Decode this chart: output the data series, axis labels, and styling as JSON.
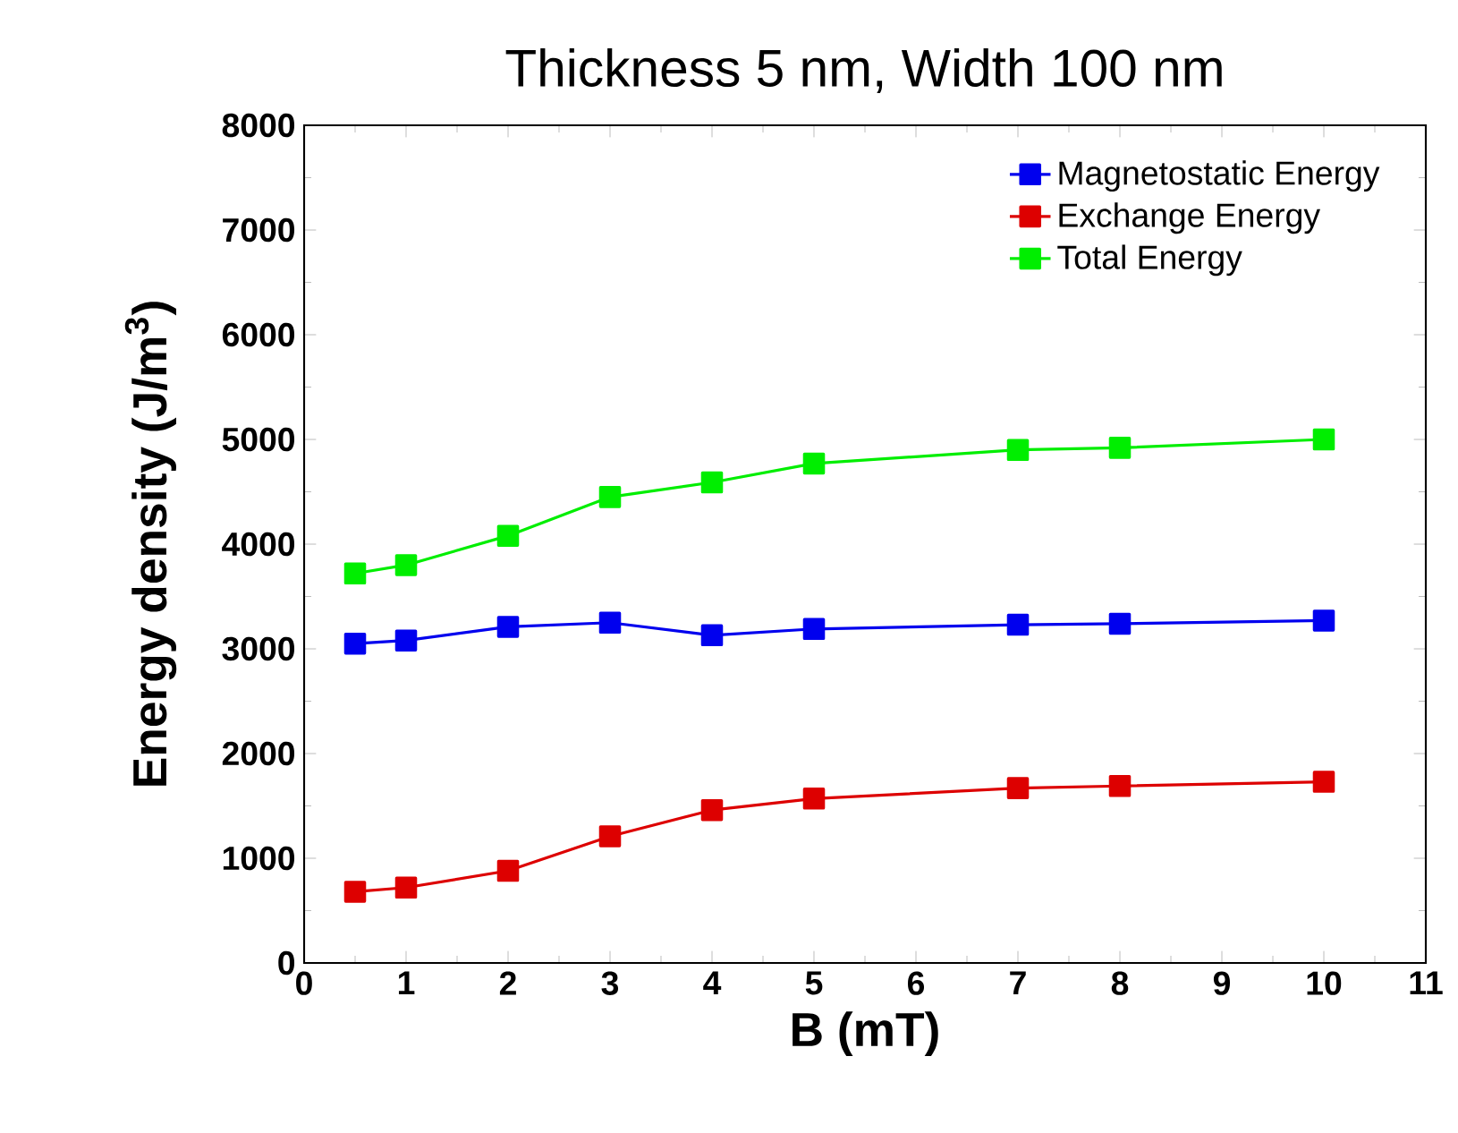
{
  "chart_data": {
    "type": "line",
    "title": "Thickness 5 nm, Width 100 nm",
    "xlabel": "B (mT)",
    "ylabel": "Energy density (J/m$^{3}$)",
    "x": [
      0.5,
      1,
      2,
      3,
      4,
      5,
      7,
      8,
      10
    ],
    "series": [
      {
        "name": "Magnetostatic Energy",
        "color": "#0000ee",
        "values": [
          3050,
          3080,
          3210,
          3250,
          3130,
          3190,
          3230,
          3240,
          3270
        ]
      },
      {
        "name": "Exchange Energy",
        "color": "#dd0000",
        "values": [
          680,
          720,
          880,
          1210,
          1460,
          1570,
          1670,
          1690,
          1730
        ]
      },
      {
        "name": "Total Energy",
        "color": "#00ee00",
        "values": [
          3720,
          3800,
          4080,
          4450,
          4590,
          4770,
          4900,
          4920,
          5000
        ]
      }
    ],
    "xlim": [
      0,
      11
    ],
    "xticks": [
      0,
      1,
      2,
      3,
      4,
      5,
      6,
      7,
      8,
      9,
      10,
      11
    ],
    "ylim": [
      0,
      8000
    ],
    "yticks": [
      0,
      1000,
      2000,
      3000,
      4000,
      5000,
      6000,
      7000,
      8000
    ],
    "grid": false,
    "legend": "top right",
    "marker": "square",
    "line_style": "solid"
  }
}
